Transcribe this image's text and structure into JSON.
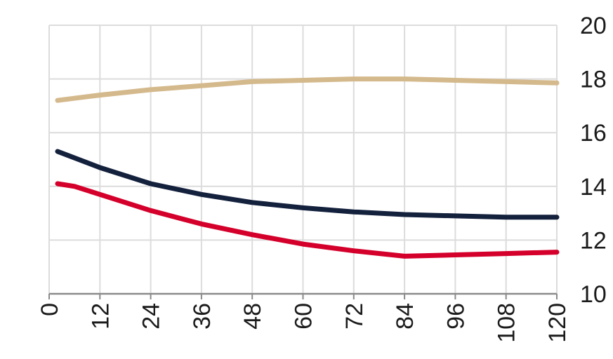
{
  "chart_data": {
    "type": "line",
    "title": "",
    "xlabel": "",
    "ylabel": "",
    "xlim": [
      0,
      120
    ],
    "ylim": [
      10,
      20
    ],
    "x_ticks": [
      "0",
      "12",
      "24",
      "36",
      "48",
      "60",
      "72",
      "84",
      "96",
      "108",
      "120"
    ],
    "y_ticks": [
      "10",
      "12",
      "14",
      "16",
      "18",
      "20"
    ],
    "y_axis_side": "right",
    "grid": true,
    "legend": "none",
    "series": [
      {
        "color": "#d4b98c",
        "x": [
          2,
          12,
          24,
          36,
          48,
          60,
          72,
          84,
          96,
          108,
          120
        ],
        "values": [
          17.2,
          17.4,
          17.6,
          17.75,
          17.9,
          17.95,
          18.0,
          18.0,
          17.95,
          17.9,
          17.85
        ]
      },
      {
        "color": "#14213d",
        "x": [
          2,
          12,
          24,
          36,
          48,
          60,
          72,
          84,
          96,
          108,
          120
        ],
        "values": [
          15.3,
          14.7,
          14.1,
          13.7,
          13.4,
          13.2,
          13.05,
          12.95,
          12.9,
          12.85,
          12.85
        ]
      },
      {
        "color": "#d4002b",
        "x": [
          2,
          6,
          12,
          24,
          36,
          48,
          60,
          72,
          84,
          96,
          108,
          120
        ],
        "values": [
          14.1,
          14.0,
          13.7,
          13.1,
          12.6,
          12.2,
          11.85,
          11.6,
          11.4,
          11.45,
          11.5,
          11.55
        ]
      }
    ]
  }
}
